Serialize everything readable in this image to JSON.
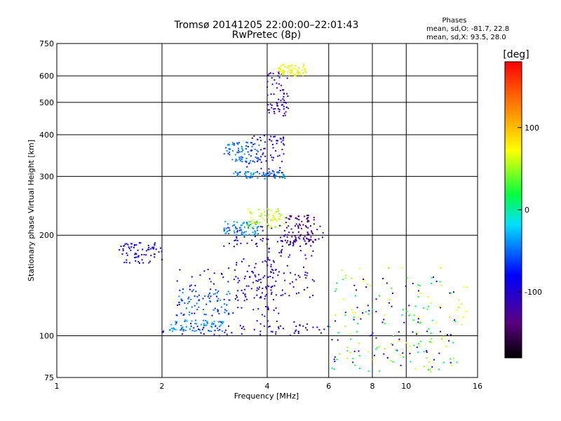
{
  "chart_data": {
    "type": "scatter",
    "title": "Tromsø 20141205 22:00:00–22:01:43",
    "subtitle": "RwPretec (8p)",
    "xlabel": "Frequency [MHz]",
    "ylabel": "Stationary phase Virtual Height [km]",
    "x_scale": "log",
    "y_scale": "log",
    "xlim": [
      1,
      16
    ],
    "ylim": [
      75,
      750
    ],
    "x_ticks": [
      1,
      2,
      4,
      6,
      8,
      10,
      16
    ],
    "x_tick_labels": [
      "1",
      "2",
      "4",
      "6",
      "8",
      "10",
      "16"
    ],
    "y_ticks": [
      75,
      100,
      200,
      300,
      400,
      500,
      600,
      750
    ],
    "y_tick_labels": [
      "75",
      "100",
      "200",
      "300",
      "400",
      "500",
      "600",
      "750"
    ],
    "grid": true,
    "phase_box": {
      "title": "Phases",
      "line_o": "mean, sd,O: -81.7, 22.8",
      "line_x": "mean, sd,X: 93.5, 28.0"
    },
    "colorbar": {
      "label": "[deg]",
      "range": [
        -180,
        180
      ],
      "ticks": [
        100,
        0,
        -100
      ],
      "tick_labels": [
        "100",
        "0",
        "-100"
      ]
    },
    "clusters": [
      {
        "x": [
          2.0,
          6.0
        ],
        "y": [
          100,
          110
        ],
        "phase": -100
      },
      {
        "x": [
          2.1,
          3.0
        ],
        "y": [
          103,
          112
        ],
        "phase": -40
      },
      {
        "x": [
          2.2,
          4.5
        ],
        "y": [
          110,
          160
        ],
        "phase": -100
      },
      {
        "x": [
          2.2,
          3.2
        ],
        "y": [
          115,
          140
        ],
        "phase": -55
      },
      {
        "x": [
          3.2,
          4.2
        ],
        "y": [
          120,
          170
        ],
        "phase": -95
      },
      {
        "x": [
          4.0,
          5.5
        ],
        "y": [
          130,
          200
        ],
        "phase": -110
      },
      {
        "x": [
          1.5,
          2.0
        ],
        "y": [
          165,
          190
        ],
        "phase": -90
      },
      {
        "x": [
          3.0,
          5.8
        ],
        "y": [
          185,
          215
        ],
        "phase": -100
      },
      {
        "x": [
          3.0,
          3.8
        ],
        "y": [
          200,
          220
        ],
        "phase": -40
      },
      {
        "x": [
          3.5,
          4.5
        ],
        "y": [
          210,
          240
        ],
        "phase": 60
      },
      {
        "x": [
          4.5,
          5.5
        ],
        "y": [
          190,
          230
        ],
        "phase": -140
      },
      {
        "x": [
          3.2,
          4.5
        ],
        "y": [
          295,
          310
        ],
        "phase": -45
      },
      {
        "x": [
          3.5,
          4.5
        ],
        "y": [
          300,
          400
        ],
        "phase": -100
      },
      {
        "x": [
          3.0,
          3.8
        ],
        "y": [
          330,
          380
        ],
        "phase": -50
      },
      {
        "x": [
          4.0,
          4.6
        ],
        "y": [
          450,
          620
        ],
        "phase": -110
      },
      {
        "x": [
          4.3,
          5.2
        ],
        "y": [
          600,
          650
        ],
        "phase": 70
      },
      {
        "x": [
          6.0,
          15.0
        ],
        "y": [
          78,
          160
        ],
        "phase": 60
      },
      {
        "x": [
          6.0,
          14.0
        ],
        "y": [
          80,
          150
        ],
        "phase": -90
      },
      {
        "x": [
          6.0,
          14.0
        ],
        "y": [
          78,
          150
        ],
        "phase": 15
      }
    ]
  }
}
